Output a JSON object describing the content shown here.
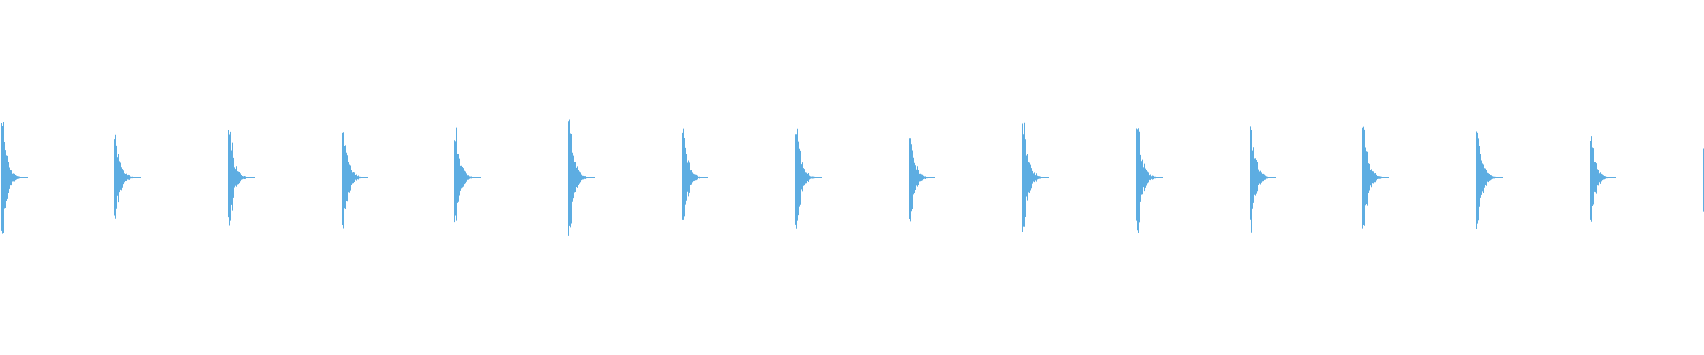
{
  "chart_data": {
    "type": "area",
    "title": "",
    "xlabel": "",
    "ylabel": "",
    "ylim": [
      -1,
      1
    ],
    "grid": false,
    "legend": "none",
    "color": "#5dade2",
    "burst_count": 16,
    "burst_peak_amplitudes": [
      0.36,
      0.25,
      0.31,
      0.34,
      0.29,
      0.35,
      0.31,
      0.31,
      0.29,
      0.33,
      0.34,
      0.33,
      0.32,
      0.31,
      0.28,
      0.2
    ]
  }
}
